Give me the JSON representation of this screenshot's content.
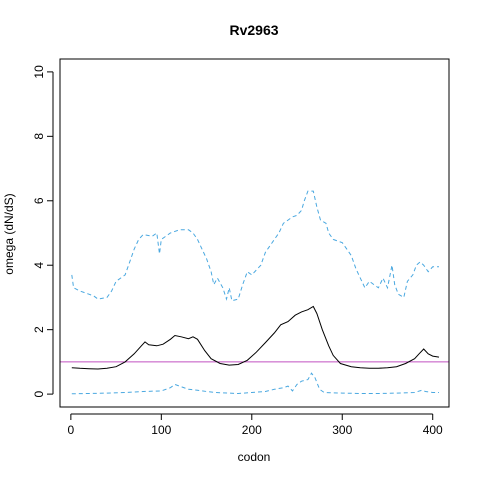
{
  "chart_data": {
    "type": "line",
    "title": "Rv2963",
    "xlabel": "codon",
    "ylabel": "omega (dN/dS)",
    "xlim": [
      -12,
      418
    ],
    "ylim": [
      -0.4,
      10.4
    ],
    "xticks": [
      0,
      100,
      200,
      300,
      400
    ],
    "yticks": [
      0,
      2,
      4,
      6,
      8,
      10
    ],
    "reference_line": {
      "y": 1,
      "color": "#c050c0"
    },
    "series": [
      {
        "color": "#000000",
        "style": "solid",
        "points": [
          [
            1,
            0.82
          ],
          [
            10,
            0.8
          ],
          [
            20,
            0.79
          ],
          [
            30,
            0.78
          ],
          [
            40,
            0.8
          ],
          [
            50,
            0.85
          ],
          [
            60,
            1.0
          ],
          [
            70,
            1.25
          ],
          [
            78,
            1.5
          ],
          [
            82,
            1.62
          ],
          [
            86,
            1.53
          ],
          [
            95,
            1.5
          ],
          [
            102,
            1.55
          ],
          [
            110,
            1.7
          ],
          [
            115,
            1.82
          ],
          [
            122,
            1.78
          ],
          [
            130,
            1.72
          ],
          [
            135,
            1.78
          ],
          [
            140,
            1.7
          ],
          [
            148,
            1.35
          ],
          [
            155,
            1.1
          ],
          [
            165,
            0.95
          ],
          [
            175,
            0.9
          ],
          [
            185,
            0.92
          ],
          [
            195,
            1.05
          ],
          [
            205,
            1.3
          ],
          [
            215,
            1.6
          ],
          [
            225,
            1.9
          ],
          [
            232,
            2.15
          ],
          [
            240,
            2.25
          ],
          [
            248,
            2.45
          ],
          [
            255,
            2.55
          ],
          [
            262,
            2.62
          ],
          [
            268,
            2.72
          ],
          [
            272,
            2.5
          ],
          [
            278,
            2.0
          ],
          [
            285,
            1.5
          ],
          [
            290,
            1.2
          ],
          [
            298,
            0.95
          ],
          [
            310,
            0.85
          ],
          [
            320,
            0.82
          ],
          [
            330,
            0.8
          ],
          [
            340,
            0.8
          ],
          [
            350,
            0.82
          ],
          [
            360,
            0.85
          ],
          [
            370,
            0.95
          ],
          [
            380,
            1.1
          ],
          [
            385,
            1.25
          ],
          [
            390,
            1.4
          ],
          [
            395,
            1.25
          ],
          [
            400,
            1.18
          ],
          [
            407,
            1.15
          ]
        ]
      },
      {
        "color": "#4aa8e0",
        "style": "dashed",
        "points": [
          [
            1,
            3.7
          ],
          [
            3,
            3.3
          ],
          [
            10,
            3.2
          ],
          [
            20,
            3.1
          ],
          [
            25,
            3.05
          ],
          [
            30,
            2.95
          ],
          [
            40,
            3.0
          ],
          [
            45,
            3.2
          ],
          [
            50,
            3.5
          ],
          [
            60,
            3.7
          ],
          [
            65,
            4.1
          ],
          [
            70,
            4.5
          ],
          [
            75,
            4.8
          ],
          [
            80,
            4.95
          ],
          [
            90,
            4.9
          ],
          [
            95,
            5.0
          ],
          [
            98,
            4.35
          ],
          [
            100,
            4.8
          ],
          [
            110,
            5.0
          ],
          [
            120,
            5.1
          ],
          [
            130,
            5.1
          ],
          [
            135,
            5.0
          ],
          [
            140,
            4.8
          ],
          [
            145,
            4.5
          ],
          [
            150,
            4.2
          ],
          [
            155,
            3.8
          ],
          [
            158,
            3.4
          ],
          [
            162,
            3.6
          ],
          [
            168,
            3.3
          ],
          [
            172,
            2.95
          ],
          [
            175,
            3.3
          ],
          [
            178,
            2.9
          ],
          [
            185,
            2.95
          ],
          [
            190,
            3.4
          ],
          [
            195,
            3.8
          ],
          [
            200,
            3.7
          ],
          [
            210,
            4.0
          ],
          [
            215,
            4.4
          ],
          [
            220,
            4.6
          ],
          [
            225,
            4.8
          ],
          [
            230,
            5.0
          ],
          [
            235,
            5.3
          ],
          [
            240,
            5.4
          ],
          [
            245,
            5.5
          ],
          [
            250,
            5.55
          ],
          [
            255,
            5.7
          ],
          [
            258,
            6.0
          ],
          [
            262,
            6.3
          ],
          [
            268,
            6.3
          ],
          [
            272,
            5.8
          ],
          [
            276,
            5.4
          ],
          [
            282,
            5.3
          ],
          [
            285,
            5.0
          ],
          [
            290,
            4.8
          ],
          [
            300,
            4.7
          ],
          [
            305,
            4.5
          ],
          [
            310,
            4.3
          ],
          [
            315,
            3.9
          ],
          [
            320,
            3.6
          ],
          [
            325,
            3.3
          ],
          [
            330,
            3.5
          ],
          [
            335,
            3.4
          ],
          [
            340,
            3.3
          ],
          [
            345,
            3.6
          ],
          [
            350,
            3.3
          ],
          [
            355,
            4.0
          ],
          [
            358,
            3.4
          ],
          [
            362,
            3.1
          ],
          [
            368,
            3.0
          ],
          [
            372,
            3.5
          ],
          [
            378,
            3.7
          ],
          [
            382,
            4.0
          ],
          [
            386,
            4.1
          ],
          [
            390,
            4.0
          ],
          [
            395,
            3.8
          ],
          [
            400,
            3.95
          ],
          [
            407,
            3.95
          ]
        ]
      },
      {
        "color": "#4aa8e0",
        "style": "dashed",
        "points": [
          [
            1,
            0.01
          ],
          [
            20,
            0.02
          ],
          [
            40,
            0.03
          ],
          [
            60,
            0.05
          ],
          [
            80,
            0.08
          ],
          [
            100,
            0.1
          ],
          [
            110,
            0.2
          ],
          [
            115,
            0.3
          ],
          [
            120,
            0.25
          ],
          [
            130,
            0.15
          ],
          [
            140,
            0.12
          ],
          [
            150,
            0.08
          ],
          [
            160,
            0.05
          ],
          [
            175,
            0.03
          ],
          [
            185,
            0.02
          ],
          [
            200,
            0.05
          ],
          [
            215,
            0.08
          ],
          [
            225,
            0.15
          ],
          [
            235,
            0.2
          ],
          [
            240,
            0.25
          ],
          [
            245,
            0.1
          ],
          [
            250,
            0.3
          ],
          [
            255,
            0.4
          ],
          [
            262,
            0.45
          ],
          [
            266,
            0.65
          ],
          [
            270,
            0.5
          ],
          [
            275,
            0.15
          ],
          [
            280,
            0.05
          ],
          [
            300,
            0.03
          ],
          [
            320,
            0.02
          ],
          [
            340,
            0.02
          ],
          [
            360,
            0.03
          ],
          [
            380,
            0.05
          ],
          [
            388,
            0.12
          ],
          [
            392,
            0.08
          ],
          [
            400,
            0.05
          ],
          [
            407,
            0.05
          ]
        ]
      }
    ]
  }
}
